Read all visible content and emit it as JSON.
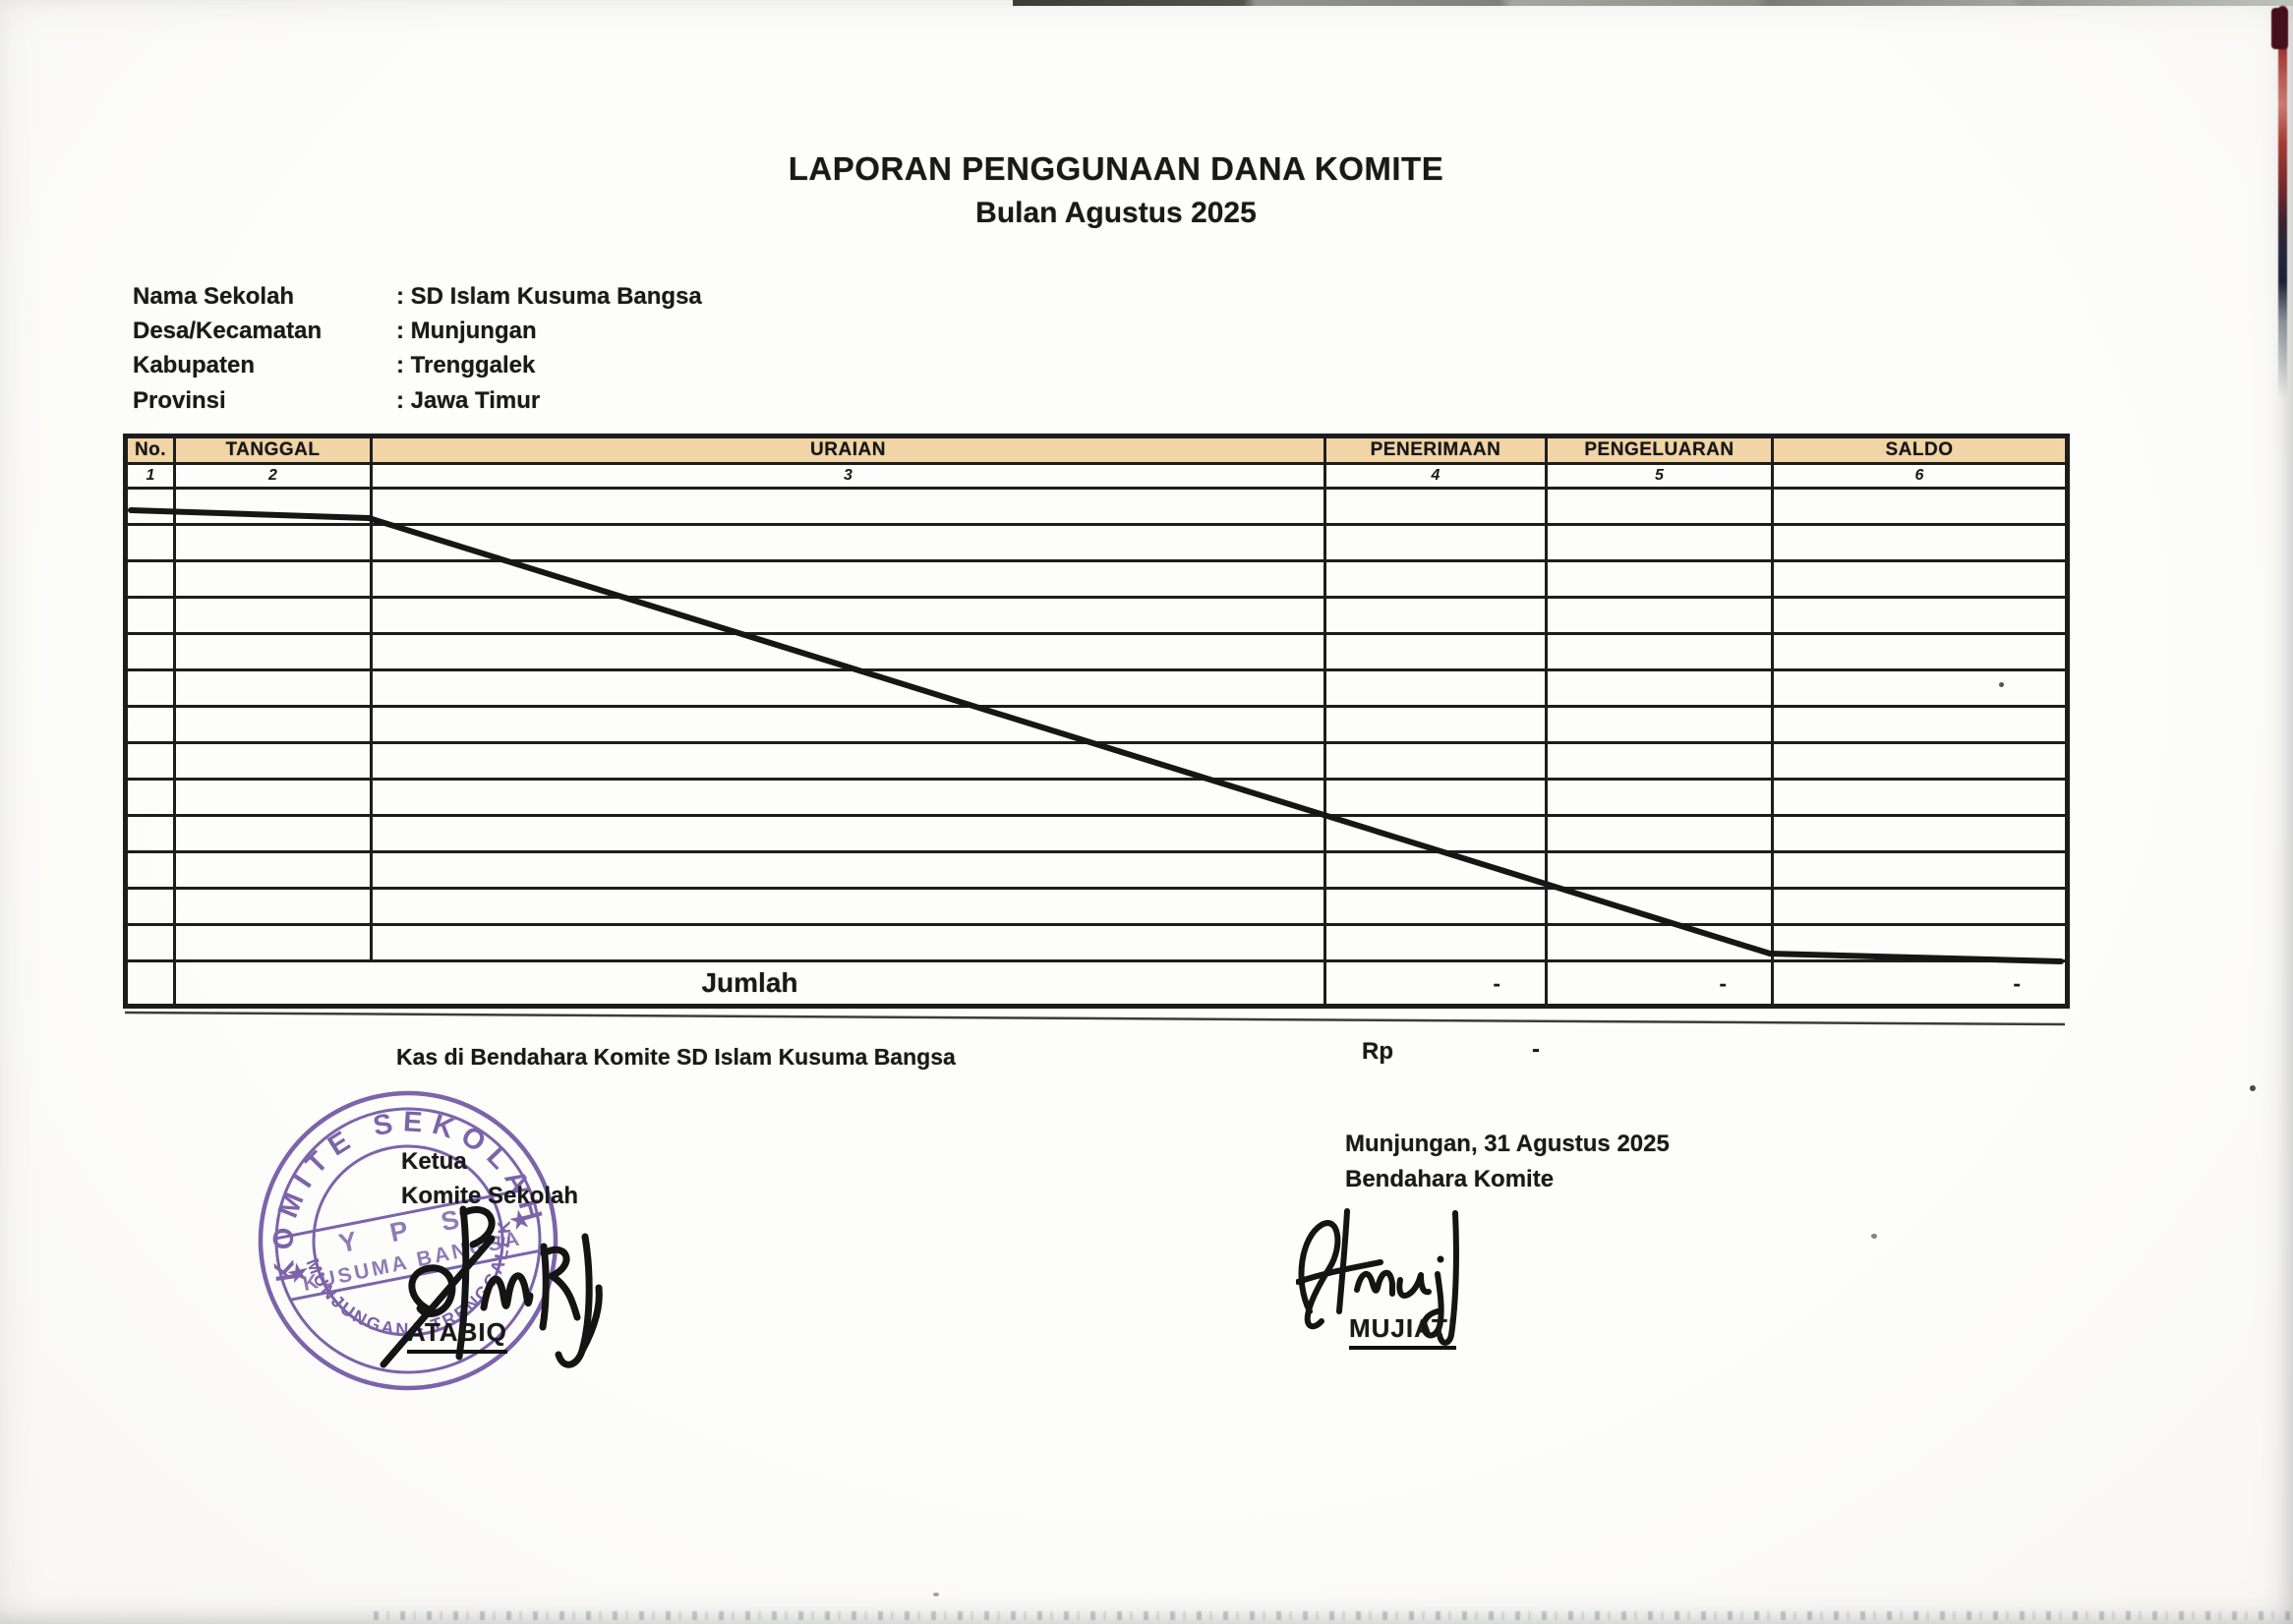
{
  "title": "LAPORAN PENGGUNAAN DANA KOMITE",
  "subtitle": "Bulan Agustus 2025",
  "school_info": [
    {
      "label": "Nama Sekolah",
      "value": ": SD Islam Kusuma Bangsa"
    },
    {
      "label": "Desa/Kecamatan",
      "value": ": Munjungan"
    },
    {
      "label": "Kabupaten",
      "value": ": Trenggalek"
    },
    {
      "label": "Provinsi",
      "value": ": Jawa Timur"
    }
  ],
  "table": {
    "headers": [
      "No.",
      "TANGGAL",
      "URAIAN",
      "PENERIMAAN",
      "PENGELUARAN",
      "SALDO"
    ],
    "column_numbers": [
      "1",
      "2",
      "3",
      "4",
      "5",
      "6"
    ],
    "empty_row_count": 13,
    "footer": {
      "label": "Jumlah",
      "penerimaan": "-",
      "pengeluaran": "-",
      "saldo": "-"
    }
  },
  "cash_line": {
    "text": "Kas di Bendahara Komite SD Islam Kusuma Bangsa",
    "currency": "Rp",
    "amount": "-"
  },
  "left_signature": {
    "role_line1": "Ketua",
    "role_line2": "Komite Sekolah",
    "name": "ATABIQ"
  },
  "right_signature": {
    "place_date": "Munjungan, 31 Agustus  2025",
    "role": "Bendahara Komite",
    "name": "MUJIATI"
  },
  "stamp": {
    "top_text": "KOMITE SEKOLAH",
    "middle_line1": "Y P S",
    "middle_line2": "KUSUMA BANGSA",
    "bottom_text": "MUNJUNGAN - TRENGGALEK",
    "star_icon": "★"
  },
  "colors": {
    "header_bg": "#f1d5a6",
    "ink": "#191919",
    "border_ink": "#1d1d1d",
    "stamp_purple": "#6b4fa0"
  }
}
